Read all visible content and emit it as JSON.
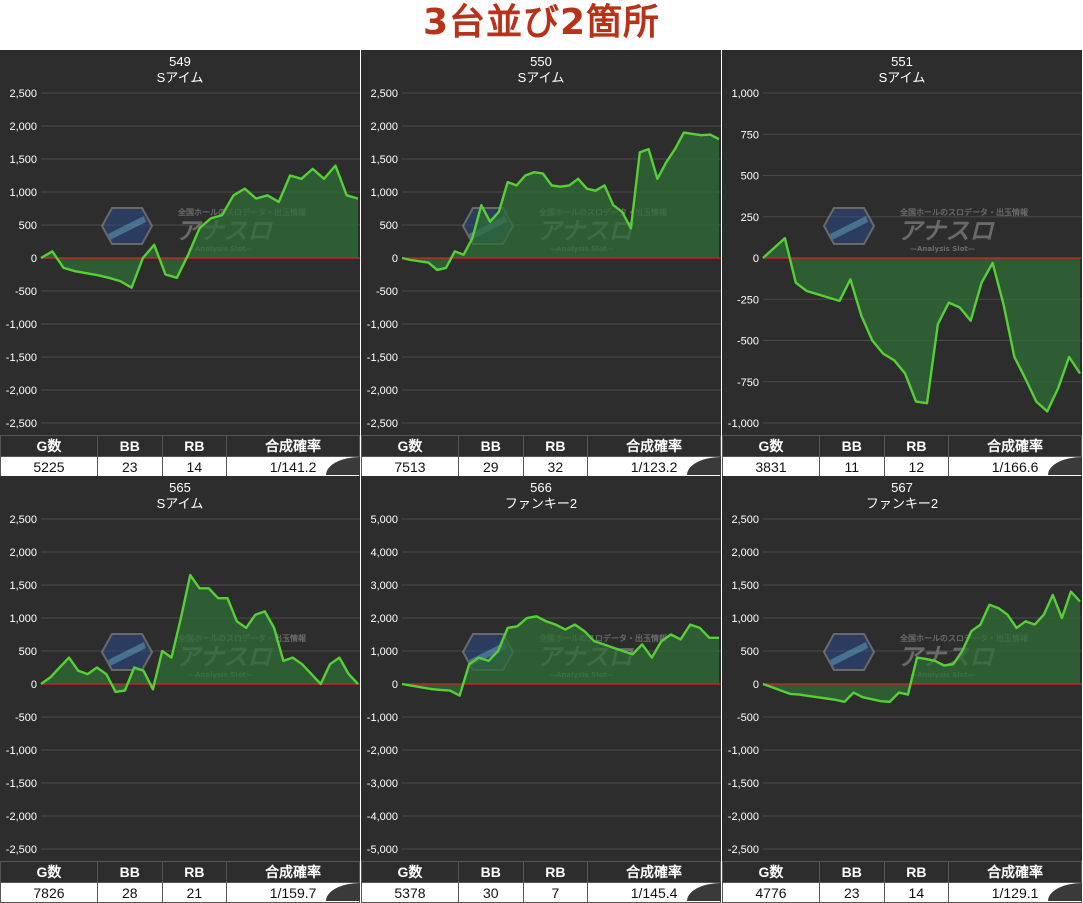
{
  "page_title": "3台並び2箇所",
  "table_headers": [
    "G数",
    "BB",
    "RB",
    "合成確率"
  ],
  "watermark": {
    "name": "アナスロ",
    "tagline": "全国ホールのスロデータ・出玉情報",
    "sub": "—Analysis Slot—"
  },
  "colors": {
    "title": "#b8321a",
    "line": "#55d035",
    "fill": "#2f6d35",
    "zero_line": "#e02020",
    "background": "#2d2d2d"
  },
  "chart_data": [
    {
      "type": "line",
      "title": "549",
      "subtitle": "Sアイム",
      "ylim": [
        -2500,
        2500
      ],
      "yticks": [
        2500,
        2000,
        1500,
        1000,
        500,
        0,
        -500,
        -1000,
        -1500,
        -2000,
        -2500
      ],
      "ytick_labels": [
        "2,500",
        "2,000",
        "1,500",
        "1,000",
        "500",
        "0",
        "-500",
        "-1,000",
        "-1,500",
        "-2,000",
        "-2,500"
      ],
      "values": [
        0,
        100,
        -150,
        -200,
        -230,
        -260,
        -300,
        -350,
        -450,
        0,
        200,
        -250,
        -300,
        50,
        450,
        600,
        650,
        950,
        1050,
        900,
        950,
        850,
        1250,
        1200,
        1350,
        1200,
        1400,
        950,
        900
      ],
      "stats": {
        "games": "5225",
        "bb": "23",
        "rb": "14",
        "rate": "1/141.2"
      }
    },
    {
      "type": "line",
      "title": "550",
      "subtitle": "Sアイム",
      "ylim": [
        -2500,
        2500
      ],
      "yticks": [
        2500,
        2000,
        1500,
        1000,
        500,
        0,
        -500,
        -1000,
        -1500,
        -2000,
        -2500
      ],
      "ytick_labels": [
        "2,500",
        "2,000",
        "1,500",
        "1,000",
        "500",
        "0",
        "-500",
        "-1,000",
        "-1,500",
        "-2,000",
        "-2,500"
      ],
      "values": [
        0,
        -30,
        -50,
        -70,
        -180,
        -150,
        100,
        50,
        300,
        800,
        550,
        700,
        1150,
        1100,
        1250,
        1300,
        1280,
        1100,
        1080,
        1100,
        1200,
        1050,
        1020,
        1100,
        800,
        700,
        450,
        1600,
        1650,
        1200,
        1450,
        1650,
        1900,
        1880,
        1860,
        1870,
        1800
      ],
      "stats": {
        "games": "7513",
        "bb": "29",
        "rb": "32",
        "rate": "1/123.2"
      }
    },
    {
      "type": "line",
      "title": "551",
      "subtitle": "Sアイム",
      "ylim": [
        -1000,
        1000
      ],
      "yticks": [
        1000,
        750,
        500,
        250,
        0,
        -250,
        -500,
        -750,
        -1000
      ],
      "ytick_labels": [
        "1,000",
        "750",
        "500",
        "250",
        "0",
        "-250",
        "-500",
        "-750",
        "-1,000"
      ],
      "values": [
        0,
        60,
        120,
        -150,
        -200,
        -220,
        -240,
        -260,
        -130,
        -350,
        -500,
        -580,
        -620,
        -700,
        -870,
        -880,
        -400,
        -270,
        -300,
        -380,
        -150,
        -30,
        -280,
        -600,
        -730,
        -870,
        -930,
        -790,
        -600,
        -700
      ],
      "stats": {
        "games": "3831",
        "bb": "11",
        "rb": "12",
        "rate": "1/166.6"
      }
    },
    {
      "type": "line",
      "title": "565",
      "subtitle": "Sアイム",
      "ylim": [
        -2500,
        2500
      ],
      "yticks": [
        2500,
        2000,
        1500,
        1000,
        500,
        0,
        -500,
        -1000,
        -1500,
        -2000,
        -2500
      ],
      "ytick_labels": [
        "2,500",
        "2,000",
        "1,500",
        "1,000",
        "500",
        "0",
        "-500",
        "-1,000",
        "-1,500",
        "-2,000",
        "-2,500"
      ],
      "values": [
        0,
        100,
        250,
        400,
        200,
        150,
        250,
        150,
        -120,
        -100,
        250,
        200,
        -80,
        500,
        400,
        1000,
        1650,
        1450,
        1450,
        1300,
        1300,
        950,
        850,
        1050,
        1100,
        850,
        350,
        400,
        300,
        150,
        0,
        300,
        400,
        150,
        0
      ],
      "stats": {
        "games": "7826",
        "bb": "28",
        "rb": "21",
        "rate": "1/159.7"
      }
    },
    {
      "type": "line",
      "title": "566",
      "subtitle": "ファンキー2",
      "ylim": [
        -5000,
        5000
      ],
      "yticks": [
        5000,
        4000,
        3000,
        2000,
        1000,
        0,
        -1000,
        -2000,
        -3000,
        -4000,
        -5000
      ],
      "ytick_labels": [
        "5,000",
        "4,000",
        "3,000",
        "2,000",
        "1,000",
        "0",
        "-1,000",
        "-2,000",
        "-3,000",
        "-4,000",
        "-5,000"
      ],
      "values": [
        0,
        -50,
        -100,
        -150,
        -180,
        -200,
        -350,
        600,
        800,
        700,
        1000,
        1700,
        1750,
        2000,
        2050,
        1900,
        1800,
        1650,
        1800,
        1600,
        1300,
        1200,
        1100,
        1000,
        900,
        1200,
        800,
        1300,
        1500,
        1350,
        1800,
        1700,
        1400,
        1400
      ],
      "stats": {
        "games": "5378",
        "bb": "30",
        "rb": "7",
        "rate": "1/145.4"
      }
    },
    {
      "type": "line",
      "title": "567",
      "subtitle": "ファンキー2",
      "ylim": [
        -2500,
        2500
      ],
      "yticks": [
        2500,
        2000,
        1500,
        1000,
        500,
        0,
        -500,
        -1000,
        -1500,
        -2000,
        -2500
      ],
      "ytick_labels": [
        "2,500",
        "2,000",
        "1,500",
        "1,000",
        "500",
        "0",
        "-500",
        "-1,000",
        "-1,500",
        "-2,000",
        "-2,500"
      ],
      "values": [
        0,
        -50,
        -100,
        -150,
        -160,
        -180,
        -200,
        -220,
        -240,
        -270,
        -130,
        -200,
        -230,
        -260,
        -270,
        -130,
        -160,
        400,
        380,
        350,
        280,
        300,
        500,
        800,
        900,
        1200,
        1150,
        1050,
        850,
        950,
        900,
        1050,
        1350,
        1000,
        1400,
        1250
      ],
      "stats": {
        "games": "4776",
        "bb": "23",
        "rb": "14",
        "rate": "1/129.1"
      }
    }
  ]
}
